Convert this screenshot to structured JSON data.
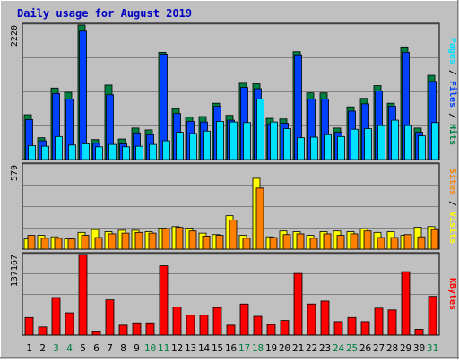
{
  "chart_title": "Daily usage for August 2019",
  "colors": {
    "background": "#c0c0c0",
    "title": "#0000c0",
    "hits": "#008040",
    "files": "#0040ff",
    "pages": "#00e0ff",
    "visits": "#ffff00",
    "sites": "#ff8000",
    "kbytes": "#ff0000",
    "weekend_label": "#008040",
    "weekday_label": "#000000"
  },
  "chart_data": [
    {
      "type": "bar",
      "panel": "hits-files-pages",
      "categories": [
        "1",
        "2",
        "3",
        "4",
        "5",
        "6",
        "7",
        "8",
        "9",
        "10",
        "11",
        "12",
        "13",
        "14",
        "15",
        "16",
        "17",
        "18",
        "19",
        "20",
        "21",
        "22",
        "23",
        "24",
        "25",
        "26",
        "27",
        "28",
        "29",
        "30",
        "31"
      ],
      "weekend_days": [
        "3",
        "4",
        "10",
        "11",
        "17",
        "18",
        "24",
        "25",
        "31"
      ],
      "ymax_label": "2220",
      "ylim": [
        0,
        2220
      ],
      "grid": true,
      "legend": [
        "Pages",
        "Files",
        "Hits"
      ],
      "series": [
        {
          "name": "Hits",
          "values": [
            740,
            360,
            1180,
            1110,
            2220,
            330,
            1230,
            340,
            520,
            490,
            1770,
            840,
            700,
            710,
            930,
            730,
            1260,
            1250,
            680,
            670,
            1780,
            1100,
            1100,
            520,
            870,
            1010,
            1220,
            930,
            1860,
            520,
            1390
          ]
        },
        {
          "name": "Files",
          "values": [
            660,
            310,
            1090,
            1000,
            2120,
            270,
            1070,
            260,
            440,
            410,
            1740,
            760,
            630,
            620,
            880,
            650,
            1190,
            1170,
            590,
            600,
            1730,
            1000,
            1000,
            450,
            800,
            920,
            1130,
            880,
            1770,
            450,
            1290
          ]
        },
        {
          "name": "Pages",
          "values": [
            230,
            220,
            380,
            240,
            260,
            210,
            250,
            210,
            220,
            250,
            310,
            450,
            430,
            470,
            630,
            620,
            610,
            1000,
            620,
            510,
            360,
            370,
            410,
            380,
            500,
            510,
            560,
            650,
            560,
            390,
            610
          ]
        }
      ]
    },
    {
      "type": "bar",
      "panel": "visits-sites",
      "categories": [
        "1",
        "2",
        "3",
        "4",
        "5",
        "6",
        "7",
        "8",
        "9",
        "10",
        "11",
        "12",
        "13",
        "14",
        "15",
        "16",
        "17",
        "18",
        "19",
        "20",
        "21",
        "22",
        "23",
        "24",
        "25",
        "26",
        "27",
        "28",
        "29",
        "30",
        "31"
      ],
      "ymax_label": "579",
      "ylim": [
        0,
        579
      ],
      "grid": true,
      "legend": [
        "Sites",
        "Visits"
      ],
      "series": [
        {
          "name": "Visits",
          "values": [
            70,
            95,
            85,
            70,
            115,
            135,
            120,
            130,
            130,
            120,
            145,
            155,
            145,
            110,
            100,
            230,
            95,
            487,
            85,
            125,
            120,
            95,
            120,
            125,
            120,
            140,
            115,
            120,
            95,
            150,
            155
          ]
        },
        {
          "name": "Sites",
          "values": [
            95,
            75,
            75,
            70,
            95,
            80,
            105,
            110,
            115,
            110,
            140,
            150,
            125,
            90,
            95,
            200,
            75,
            420,
            80,
            100,
            105,
            75,
            105,
            95,
            105,
            125,
            80,
            80,
            100,
            85,
            135
          ]
        }
      ]
    },
    {
      "type": "bar",
      "panel": "kbytes",
      "categories": [
        "1",
        "2",
        "3",
        "4",
        "5",
        "6",
        "7",
        "8",
        "9",
        "10",
        "11",
        "12",
        "13",
        "14",
        "15",
        "16",
        "17",
        "18",
        "19",
        "20",
        "21",
        "22",
        "23",
        "24",
        "25",
        "26",
        "27",
        "28",
        "29",
        "30",
        "31"
      ],
      "ymax_label": "137167",
      "ylim": [
        0,
        137167
      ],
      "grid": true,
      "legend": [
        "KBytes"
      ],
      "series": [
        {
          "name": "KBytes",
          "values": [
            30000,
            14000,
            64000,
            38000,
            137167,
            7000,
            60000,
            17000,
            21000,
            21000,
            118000,
            48000,
            34000,
            34000,
            47000,
            17000,
            53000,
            32000,
            18000,
            25000,
            105000,
            53000,
            58000,
            23000,
            30000,
            23000,
            46000,
            43000,
            108000,
            10000,
            66000
          ]
        }
      ]
    }
  ]
}
